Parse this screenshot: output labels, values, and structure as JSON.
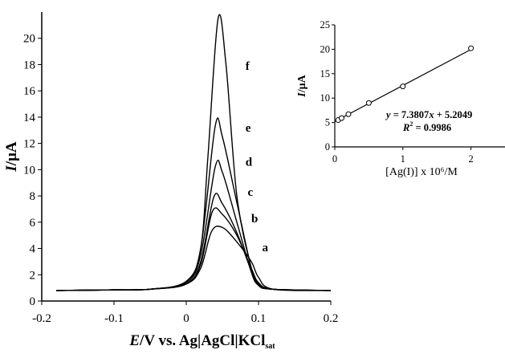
{
  "chart_data": [
    {
      "type": "line",
      "xlabel_parts": {
        "italic": "E",
        "rest": "/V vs. Ag|AgCl|KCl",
        "sub": "sat"
      },
      "ylabel_parts": {
        "italic": "I",
        "rest": "/μA"
      },
      "xlim": [
        -0.2,
        0.2
      ],
      "ylim": [
        0,
        22
      ],
      "x_ticks": [
        "-0.2",
        "-0.1",
        "0",
        "0.1",
        "0.2"
      ],
      "y_ticks": [
        "0",
        "2",
        "4",
        "6",
        "8",
        "10",
        "12",
        "14",
        "16",
        "18",
        "20"
      ],
      "grid": false,
      "series": [
        {
          "name": "a",
          "x": [
            -0.18,
            -0.1,
            -0.05,
            0.0,
            0.02,
            0.035,
            0.05,
            0.07,
            0.09,
            0.1,
            0.12,
            0.2
          ],
          "y": [
            0.8,
            0.85,
            0.9,
            1.3,
            2.5,
            5.3,
            5.6,
            4.5,
            3.0,
            1.8,
            0.9,
            0.8
          ]
        },
        {
          "name": "b",
          "x": [
            -0.18,
            -0.1,
            -0.05,
            0.0,
            0.02,
            0.036,
            0.05,
            0.07,
            0.09,
            0.1,
            0.12,
            0.2
          ],
          "y": [
            0.8,
            0.85,
            0.9,
            1.3,
            2.8,
            6.8,
            6.6,
            5.0,
            2.5,
            1.4,
            0.9,
            0.8
          ]
        },
        {
          "name": "c",
          "x": [
            -0.18,
            -0.1,
            -0.05,
            0.0,
            0.02,
            0.038,
            0.05,
            0.07,
            0.09,
            0.1,
            0.12,
            0.2
          ],
          "y": [
            0.8,
            0.85,
            0.9,
            1.3,
            3.0,
            7.9,
            7.4,
            5.2,
            2.3,
            1.3,
            0.9,
            0.8
          ]
        },
        {
          "name": "d",
          "x": [
            -0.18,
            -0.1,
            -0.05,
            0.0,
            0.02,
            0.04,
            0.05,
            0.07,
            0.09,
            0.1,
            0.12,
            0.2
          ],
          "y": [
            0.8,
            0.85,
            0.9,
            1.4,
            3.5,
            10.2,
            9.8,
            6.0,
            2.2,
            1.2,
            0.9,
            0.8
          ]
        },
        {
          "name": "e",
          "x": [
            -0.18,
            -0.1,
            -0.05,
            0.0,
            0.02,
            0.04,
            0.05,
            0.07,
            0.09,
            0.1,
            0.12,
            0.2
          ],
          "y": [
            0.8,
            0.85,
            0.9,
            1.5,
            4.0,
            13.3,
            12.5,
            7.5,
            2.5,
            1.2,
            0.9,
            0.8
          ]
        },
        {
          "name": "f",
          "x": [
            -0.18,
            -0.1,
            -0.05,
            0.0,
            0.02,
            0.03,
            0.044,
            0.055,
            0.07,
            0.09,
            0.1,
            0.12,
            0.2
          ],
          "y": [
            0.8,
            0.85,
            0.9,
            1.5,
            4.0,
            11.0,
            21.5,
            18.0,
            8.0,
            2.5,
            1.2,
            0.9,
            0.8
          ]
        }
      ]
    },
    {
      "type": "scatter",
      "xlabel": "[Ag(I)] x 10⁶/M",
      "ylabel_parts": {
        "italic": "I",
        "rest": "/μA"
      },
      "xlim": [
        0,
        2.5
      ],
      "ylim": [
        0,
        25
      ],
      "x_ticks": [
        "0",
        "1",
        "2"
      ],
      "y_ticks": [
        "0",
        "5",
        "10",
        "15",
        "20",
        "25"
      ],
      "grid": false,
      "points": {
        "x": [
          0.05,
          0.1,
          0.2,
          0.5,
          1.0,
          2.0
        ],
        "y": [
          5.5,
          5.9,
          6.7,
          9.0,
          12.4,
          20.2
        ]
      },
      "fit": {
        "slope": 7.3807,
        "intercept": 5.2049,
        "x_range": [
          0,
          2.0
        ]
      },
      "equation": {
        "y_var": "y",
        "rhs": " = 7.3807",
        "x_var": "x",
        "tail": " + 5.2049"
      },
      "r2": {
        "var": "R",
        "sup": "2",
        "rest": " = 0.9986"
      }
    }
  ]
}
